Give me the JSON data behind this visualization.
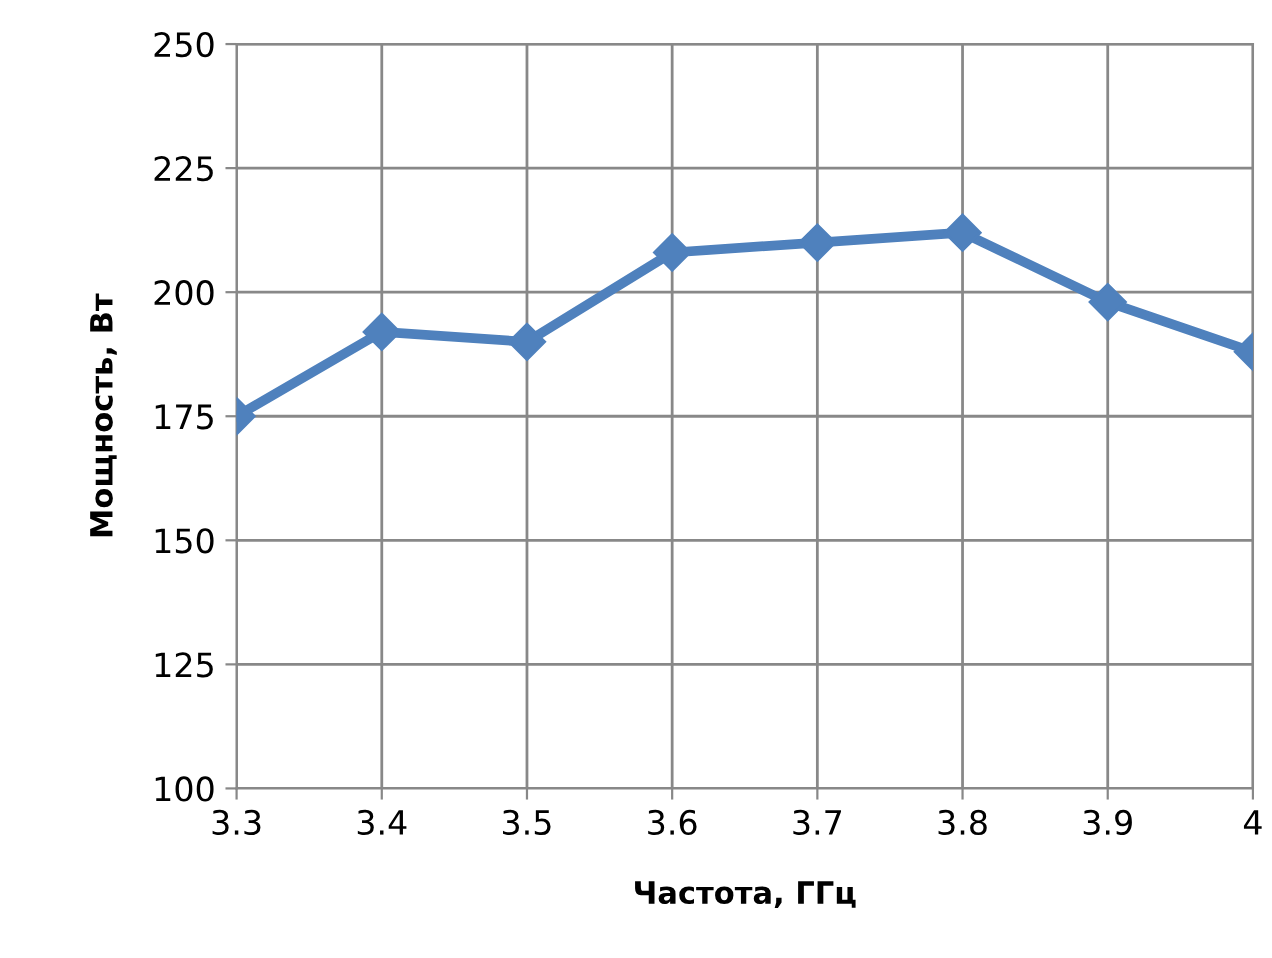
{
  "chart_data": {
    "type": "line",
    "xlabel": "Частота, ГГц",
    "ylabel": "Мощность, Вт",
    "x": [
      3.3,
      3.4,
      3.5,
      3.6,
      3.7,
      3.8,
      3.9,
      4.0
    ],
    "series": [
      {
        "color": "#4f81bd",
        "values": [
          175,
          192,
          190,
          208,
          210,
          212,
          198,
          188
        ]
      }
    ],
    "xlim": [
      3.3,
      4.0
    ],
    "xticks": [
      3.3,
      3.4,
      3.5,
      3.6,
      3.7,
      3.8,
      3.9,
      {
        "value": 4.0,
        "label": "4"
      }
    ],
    "ylim": [
      100,
      250
    ],
    "yticks": [
      100,
      125,
      150,
      175,
      200,
      225,
      250
    ],
    "grid": true,
    "marker": "diamond",
    "line_style": "solid"
  }
}
